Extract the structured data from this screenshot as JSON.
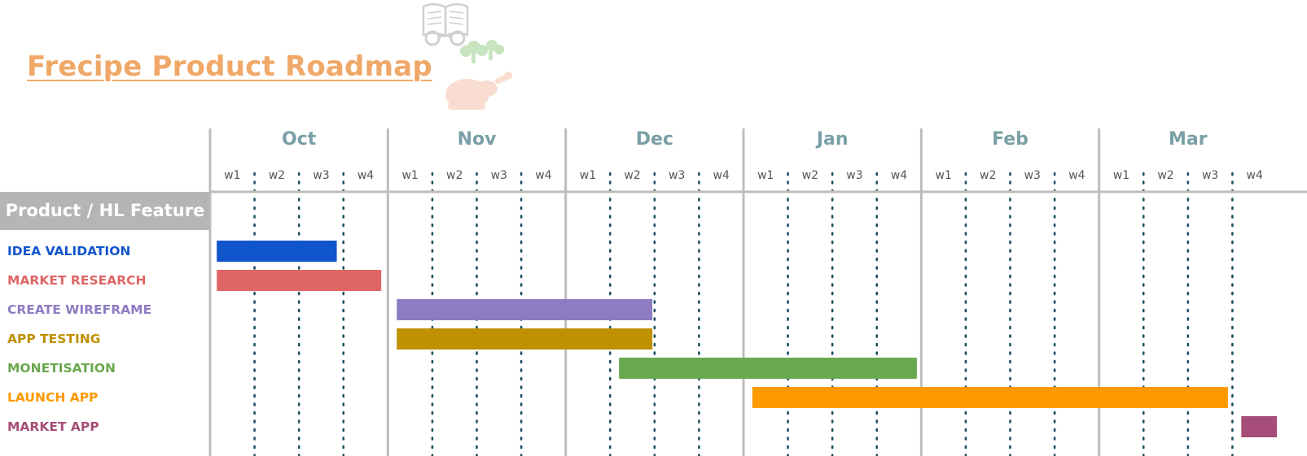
{
  "title": "Frecipe Product Roadmap",
  "header_label": "Product / HL Feature",
  "colors": {
    "title": "#f0a868",
    "month_label": "#7a9fa6",
    "week_label": "#555555",
    "grid_solid": "#bdbdbd",
    "grid_dotted": "#1f5060",
    "header_bg": "#b5b5b5"
  },
  "chart_data": {
    "type": "gantt",
    "title": "Frecipe Product Roadmap",
    "months": [
      "Oct",
      "Nov",
      "Dec",
      "Jan",
      "Feb",
      "Mar"
    ],
    "weeks": [
      "w1",
      "w2",
      "w3",
      "w4"
    ],
    "grid": true,
    "tasks": [
      {
        "name": "IDEA VALIDATION",
        "color": "#1155cc",
        "start": 0.15,
        "end": 2.85
      },
      {
        "name": "MARKET RESEARCH",
        "color": "#e06666",
        "start": 0.15,
        "end": 3.85
      },
      {
        "name": "CREATE WIREFRAME",
        "color": "#8e7cc3",
        "start": 4.2,
        "end": 9.95
      },
      {
        "name": "APP TESTING",
        "color": "#bf9000",
        "start": 4.2,
        "end": 9.95
      },
      {
        "name": "MONETISATION",
        "color": "#6aa84f",
        "start": 9.2,
        "end": 15.9
      },
      {
        "name": "LAUNCH APP",
        "color": "#ff9900",
        "start": 12.2,
        "end": 22.9
      },
      {
        "name": "MARKET APP",
        "color": "#a64d79",
        "start": 23.2,
        "end": 24.0
      }
    ]
  }
}
